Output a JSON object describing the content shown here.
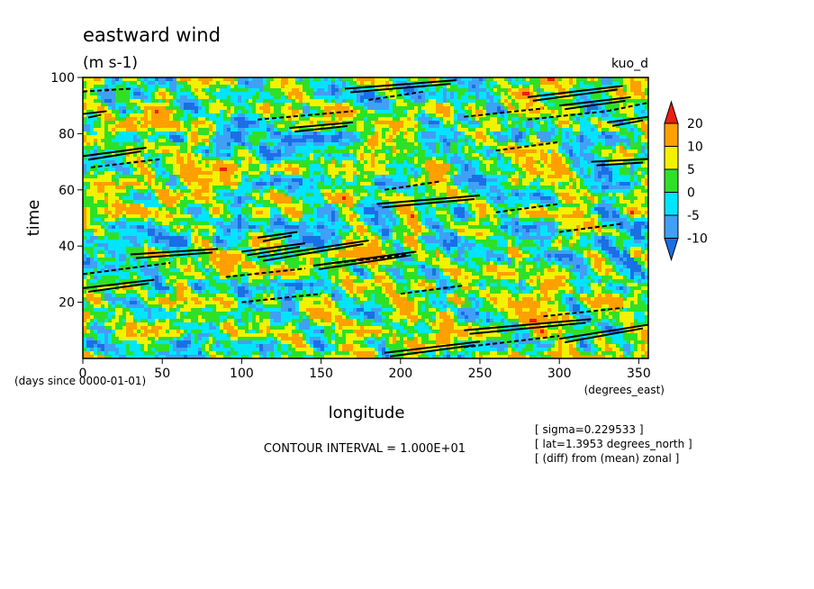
{
  "chart_data": {
    "type": "heatmap",
    "title": "eastward wind",
    "subtitle": "(m s-1)",
    "corner_label": "kuo_d",
    "xlabel": "longitude",
    "xunits": "(degrees_east)",
    "ylabel": "time",
    "yunits": "(days since 0000-01-01)",
    "xlim": [
      0,
      356
    ],
    "ylim": [
      0,
      100
    ],
    "xticks": [
      0,
      50,
      100,
      150,
      200,
      250,
      300,
      350
    ],
    "yticks": [
      20,
      40,
      60,
      80,
      100
    ],
    "color_levels": [
      -10,
      -5,
      0,
      5,
      10,
      20
    ],
    "colorbar_labels": [
      "20",
      "10",
      "5",
      "0",
      "-5",
      "-10"
    ],
    "colors": {
      "below_-10": "#1a6fe6",
      "-10_to_-5": "#3fa0f5",
      "-5_to_0": "#00e5ff",
      "0_to_5": "#2ee028",
      "5_to_10": "#f2f200",
      "10_to_20": "#ffa000",
      "above_20": "#ee1d10"
    },
    "contour_interval": "CONTOUR INTERVAL = 1.000E+01",
    "annotations": [
      "[ sigma=0.229533 ]",
      "[ lat=1.3953 degrees_north ]",
      "[ (diff) from (mean) zonal ]"
    ],
    "contour_segments_solid": [
      [
        [
          0,
          72
        ],
        [
          40,
          75
        ]
      ],
      [
        [
          0,
          25
        ],
        [
          45,
          28
        ]
      ],
      [
        [
          165,
          96
        ],
        [
          235,
          99
        ]
      ],
      [
        [
          300,
          90
        ],
        [
          345,
          93
        ]
      ],
      [
        [
          185,
          55
        ],
        [
          250,
          58
        ]
      ],
      [
        [
          100,
          38
        ],
        [
          140,
          41
        ]
      ],
      [
        [
          110,
          36
        ],
        [
          180,
          42
        ]
      ],
      [
        [
          145,
          33
        ],
        [
          210,
          38
        ]
      ],
      [
        [
          240,
          10
        ],
        [
          320,
          14
        ]
      ],
      [
        [
          300,
          7
        ],
        [
          356,
          12
        ]
      ],
      [
        [
          190,
          2
        ],
        [
          250,
          6
        ]
      ],
      [
        [
          0,
          87
        ],
        [
          15,
          88
        ]
      ],
      [
        [
          130,
          82
        ],
        [
          170,
          84
        ]
      ],
      [
        [
          280,
          93
        ],
        [
          340,
          97
        ]
      ],
      [
        [
          330,
          84
        ],
        [
          356,
          86
        ]
      ],
      [
        [
          320,
          70
        ],
        [
          356,
          71
        ]
      ],
      [
        [
          30,
          37
        ],
        [
          85,
          39
        ]
      ],
      [
        [
          110,
          43
        ],
        [
          135,
          45
        ]
      ]
    ],
    "contour_segments_dashed": [
      [
        [
          5,
          68
        ],
        [
          50,
          71
        ]
      ],
      [
        [
          0,
          30
        ],
        [
          55,
          34
        ]
      ],
      [
        [
          180,
          92
        ],
        [
          215,
          95
        ]
      ],
      [
        [
          280,
          85
        ],
        [
          330,
          88
        ]
      ],
      [
        [
          260,
          74
        ],
        [
          300,
          77
        ]
      ],
      [
        [
          190,
          60
        ],
        [
          225,
          63
        ]
      ],
      [
        [
          90,
          29
        ],
        [
          140,
          32
        ]
      ],
      [
        [
          160,
          34
        ],
        [
          205,
          37
        ]
      ],
      [
        [
          300,
          45
        ],
        [
          340,
          48
        ]
      ],
      [
        [
          260,
          52
        ],
        [
          300,
          55
        ]
      ],
      [
        [
          290,
          15
        ],
        [
          340,
          18
        ]
      ],
      [
        [
          240,
          4
        ],
        [
          300,
          8
        ]
      ],
      [
        [
          330,
          88
        ],
        [
          356,
          91
        ]
      ],
      [
        [
          0,
          95
        ],
        [
          30,
          96
        ]
      ],
      [
        [
          100,
          20
        ],
        [
          150,
          23
        ]
      ],
      [
        [
          200,
          23
        ],
        [
          240,
          26
        ]
      ],
      [
        [
          110,
          85
        ],
        [
          170,
          88
        ]
      ],
      [
        [
          240,
          86
        ],
        [
          290,
          89
        ]
      ]
    ]
  }
}
